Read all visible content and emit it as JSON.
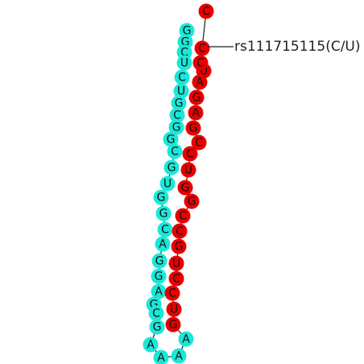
{
  "colors": {
    "strand_5p": "#19e8d8",
    "strand_3p": "#e60000",
    "backbone": "#222222",
    "leader": "#222222"
  },
  "snp_label": "rs111715115(C/U)",
  "sequence": {
    "strand_5p": [
      "G",
      "G",
      "C",
      "U",
      "C",
      "U",
      "G",
      "C",
      "G",
      "G",
      "C",
      "G",
      "U",
      "G",
      "G",
      "C",
      "A",
      "G",
      "G",
      "A",
      "G",
      "C",
      "G"
    ],
    "loop": [
      "A",
      "A",
      "A",
      "A"
    ],
    "strand_3p": [
      "G",
      "U",
      "C",
      "C",
      "U",
      "G",
      "C",
      "C",
      "G",
      "G",
      "U",
      "C",
      "C",
      "G",
      "A",
      "G",
      "A",
      "U",
      "C",
      "C",
      "C"
    ]
  }
}
